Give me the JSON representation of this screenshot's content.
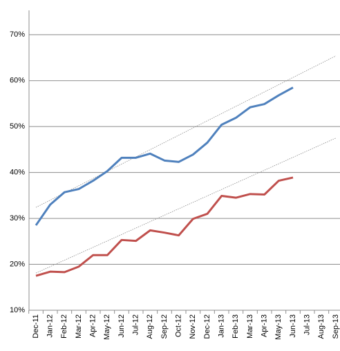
{
  "chart_data": {
    "type": "line",
    "categories": [
      "Dec-11",
      "Jan-12",
      "Feb-12",
      "Mar-12",
      "Apr-12",
      "May-12",
      "Jun-12",
      "Jul-12",
      "Aug-12",
      "Sep-12",
      "Oct-12",
      "Nov-12",
      "Dec-12",
      "Jan-13",
      "Feb-13",
      "Mar-13",
      "Apr-13",
      "May-13",
      "Jun-13",
      "Jul-13",
      "Aug-13",
      "Sep-13"
    ],
    "series": [
      {
        "color": "#4f81bd",
        "values": [
          28.5,
          33,
          35.7,
          36.4,
          38.2,
          40.3,
          43.2,
          43.2,
          44.1,
          42.6,
          42.3,
          43.9,
          46.5,
          50.4,
          51.9,
          54.2,
          54.9,
          56.8,
          58.5,
          null,
          null,
          null
        ],
        "trend": [
          32.4,
          65.4
        ]
      },
      {
        "color": "#c0504d",
        "values": [
          17.5,
          18.4,
          18.3,
          19.5,
          22,
          22,
          25.3,
          25.1,
          27.4,
          26.9,
          26.3,
          29.9,
          31,
          34.9,
          34.5,
          35.3,
          35.2,
          38.2,
          38.9,
          null,
          null,
          null
        ],
        "trend": [
          18.1,
          47.5
        ]
      }
    ],
    "ylim": [
      10,
      75
    ],
    "yticks": [
      {
        "value": 10,
        "label": "10%"
      },
      {
        "value": 20,
        "label": "20%"
      },
      {
        "value": 30,
        "label": "30%"
      },
      {
        "value": 40,
        "label": "40%"
      },
      {
        "value": 50,
        "label": "50%"
      },
      {
        "value": 60,
        "label": "60%"
      },
      {
        "value": 70,
        "label": "70%"
      }
    ],
    "grid": true
  }
}
